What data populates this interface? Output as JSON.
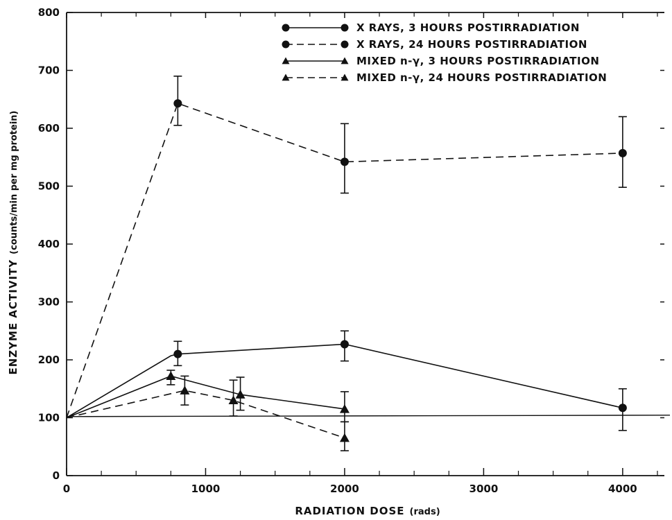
{
  "chart_data": {
    "type": "line",
    "xlabel": "RADIATION DOSE",
    "xlabel_unit": "(rads)",
    "ylabel": "ENZYME ACTIVITY",
    "ylabel_unit": "(counts/min per mg protein)",
    "xlim": [
      0,
      4300
    ],
    "ylim": [
      0,
      800
    ],
    "x_ticks": [
      0,
      1000,
      2000,
      3000,
      4000
    ],
    "y_ticks": [
      0,
      100,
      200,
      300,
      400,
      500,
      600,
      700,
      800
    ],
    "x_minor_step": 250,
    "grid": false,
    "legend_position": "top-right",
    "baseline": 102,
    "series": [
      {
        "name": "X RAYS, 3 HOURS POSTIRRADIATION",
        "marker": "circle",
        "line_style": "solid",
        "line_x": [
          0,
          750,
          800,
          2000,
          4000
        ],
        "line_y": [
          100,
          207,
          210,
          227,
          117
        ],
        "points": [
          {
            "x": 800,
            "y": 210,
            "err_low": 190,
            "err_high": 232
          },
          {
            "x": 2000,
            "y": 227,
            "err_low": 198,
            "err_high": 250
          },
          {
            "x": 4000,
            "y": 117,
            "err_low": 78,
            "err_high": 150
          }
        ]
      },
      {
        "name": "X RAYS, 24 HOURS POSTIRRADIATION",
        "marker": "circle",
        "line_style": "dashed",
        "line_x": [
          0,
          800,
          2000,
          4000
        ],
        "line_y": [
          100,
          643,
          542,
          557
        ],
        "points": [
          {
            "x": 800,
            "y": 643,
            "err_low": 605,
            "err_high": 690
          },
          {
            "x": 2000,
            "y": 542,
            "err_low": 488,
            "err_high": 608
          },
          {
            "x": 4000,
            "y": 557,
            "err_low": 498,
            "err_high": 620
          }
        ]
      },
      {
        "name": "MIXED n-γ, 3 HOURS POSTIRRADIATION",
        "marker": "triangle",
        "line_style": "solid",
        "line_x": [
          0,
          750,
          1250,
          2000
        ],
        "line_y": [
          100,
          172,
          140,
          115
        ],
        "points": [
          {
            "x": 750,
            "y": 172,
            "err_low": 157,
            "err_high": 182
          },
          {
            "x": 1250,
            "y": 140,
            "err_low": 113,
            "err_high": 170
          },
          {
            "x": 2000,
            "y": 115,
            "err_low": 93,
            "err_high": 145
          }
        ]
      },
      {
        "name": "MIXED n-γ, 24 HOURS POSTIRRADIATION",
        "marker": "triangle",
        "line_style": "dashed",
        "line_x": [
          0,
          850,
          1200,
          2000
        ],
        "line_y": [
          100,
          147,
          130,
          65
        ],
        "points": [
          {
            "x": 850,
            "y": 147,
            "err_low": 122,
            "err_high": 172
          },
          {
            "x": 1200,
            "y": 130,
            "err_low": 103,
            "err_high": 165
          },
          {
            "x": 2000,
            "y": 65,
            "err_low": 43,
            "err_high": 93
          }
        ]
      }
    ]
  }
}
